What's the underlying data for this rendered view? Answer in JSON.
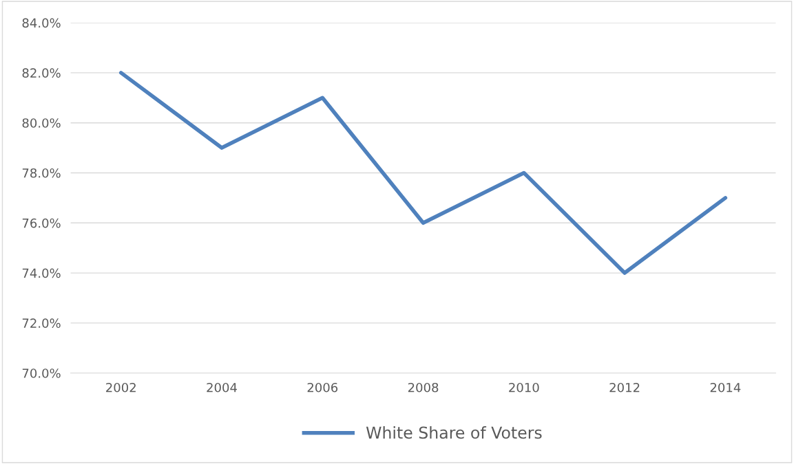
{
  "chart_data": {
    "type": "line",
    "categories": [
      "2002",
      "2004",
      "2006",
      "2008",
      "2010",
      "2012",
      "2014"
    ],
    "series": [
      {
        "name": "White Share of Voters",
        "color": "#4f81bd",
        "values": [
          82,
          79,
          81,
          76,
          78,
          74,
          77
        ]
      }
    ],
    "ylim": [
      70,
      84
    ],
    "yticks": [
      {
        "value": 70,
        "label": "70.0%"
      },
      {
        "value": 72,
        "label": "72.0%"
      },
      {
        "value": 74,
        "label": "74.0%"
      },
      {
        "value": 76,
        "label": "76.0%"
      },
      {
        "value": 78,
        "label": "78.0%"
      },
      {
        "value": 80,
        "label": "80.0%"
      },
      {
        "value": 82,
        "label": "82.0%"
      },
      {
        "value": 84,
        "label": "84.0%"
      }
    ],
    "grid": "y",
    "legend": "bottom",
    "marker": "none",
    "line_style": "solid"
  }
}
